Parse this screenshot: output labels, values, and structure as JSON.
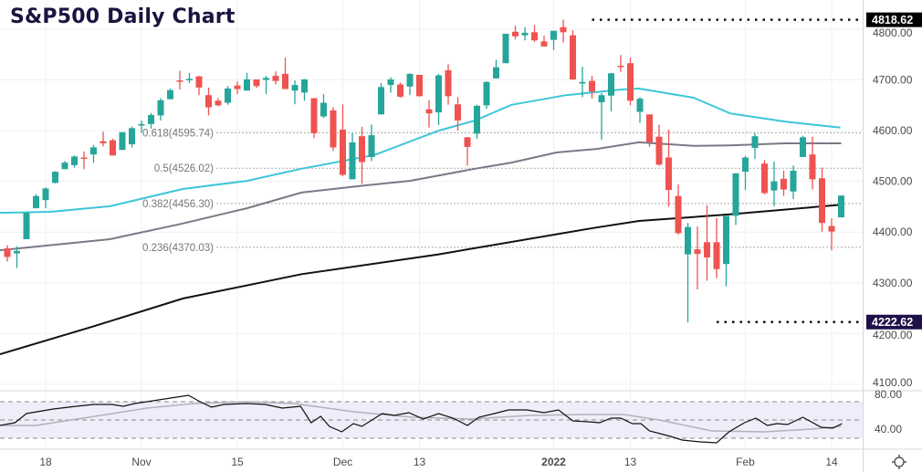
{
  "title": "S&P500 Daily Chart",
  "colors": {
    "up": "#26a69a",
    "down": "#ef5350",
    "ma50": "#3dc6d8",
    "ma100": "#787b86",
    "ma200": "#111111",
    "title": "#1d1340",
    "high_tag": "#000000",
    "low_tag": "#1e1048"
  },
  "chart_data": {
    "type": "candlestick",
    "title": "S&P500 Daily Chart",
    "first_index": -4,
    "ohlc": [
      [
        4368,
        4374,
        4342,
        4351
      ],
      [
        4358,
        4372,
        4329,
        4363
      ],
      [
        4386,
        4439,
        4386,
        4438
      ],
      [
        4447,
        4475,
        4447,
        4471
      ],
      [
        4463,
        4488,
        4447,
        4486
      ],
      [
        4497,
        4520,
        4496,
        4519
      ],
      [
        4524,
        4540,
        4524,
        4537
      ],
      [
        4532,
        4551,
        4527,
        4549
      ],
      [
        4547,
        4559,
        4524,
        4545
      ],
      [
        4553,
        4572,
        4537,
        4567
      ],
      [
        4579,
        4598,
        4569,
        4575
      ],
      [
        4581,
        4584,
        4551,
        4551
      ],
      [
        4562,
        4597,
        4562,
        4597
      ],
      [
        4573,
        4608,
        4567,
        4605
      ],
      [
        4610,
        4620,
        4595,
        4613
      ],
      [
        4613,
        4635,
        4604,
        4631
      ],
      [
        4630,
        4664,
        4620,
        4660
      ],
      [
        4662,
        4683,
        4662,
        4680
      ],
      [
        4699,
        4718,
        4681,
        4697
      ],
      [
        4702,
        4714,
        4694,
        4702
      ],
      [
        4707,
        4708,
        4670,
        4685
      ],
      [
        4670,
        4685,
        4630,
        4646
      ],
      [
        4659,
        4664,
        4648,
        4650
      ],
      [
        4655,
        4688,
        4651,
        4683
      ],
      [
        4689,
        4697,
        4672,
        4682
      ],
      [
        4679,
        4714,
        4679,
        4701
      ],
      [
        4701,
        4701,
        4684,
        4688
      ],
      [
        4700,
        4708,
        4672,
        4704
      ],
      [
        4708,
        4717,
        4691,
        4698
      ],
      [
        4712,
        4744,
        4682,
        4682
      ],
      [
        4679,
        4699,
        4652,
        4690
      ],
      [
        4675,
        4702,
        4659,
        4701
      ],
      [
        4664,
        4664,
        4585,
        4595
      ],
      [
        4628,
        4672,
        4625,
        4655
      ],
      [
        4640,
        4646,
        4560,
        4567
      ],
      [
        4602,
        4652,
        4510,
        4513
      ],
      [
        4504,
        4595,
        4504,
        4577
      ],
      [
        4589,
        4608,
        4495,
        4538
      ],
      [
        4548,
        4612,
        4540,
        4591
      ],
      [
        4632,
        4694,
        4632,
        4686
      ],
      [
        4690,
        4705,
        4675,
        4701
      ],
      [
        4691,
        4695,
        4665,
        4667
      ],
      [
        4687,
        4713,
        4670,
        4712
      ],
      [
        4710,
        4710,
        4667,
        4668
      ],
      [
        4642,
        4660,
        4606,
        4634
      ],
      [
        4636,
        4712,
        4611,
        4709
      ],
      [
        4719,
        4731,
        4651,
        4668
      ],
      [
        4652,
        4666,
        4600,
        4620
      ],
      [
        4587,
        4587,
        4531,
        4568
      ],
      [
        4594,
        4651,
        4584,
        4649
      ],
      [
        4650,
        4697,
        4643,
        4696
      ],
      [
        4703,
        4740,
        4703,
        4725
      ],
      [
        4733,
        4791,
        4733,
        4791
      ],
      [
        4795,
        4807,
        4780,
        4786
      ],
      [
        4788,
        4804,
        4778,
        4793
      ],
      [
        4794,
        4808,
        4775,
        4778
      ],
      [
        4776,
        4787,
        4766,
        4766
      ],
      [
        4779,
        4796,
        4759,
        4797
      ],
      [
        4804,
        4819,
        4774,
        4794
      ],
      [
        4788,
        4798,
        4700,
        4701
      ],
      [
        4693,
        4726,
        4666,
        4696
      ],
      [
        4698,
        4708,
        4663,
        4677
      ],
      [
        4656,
        4674,
        4582,
        4670
      ],
      [
        4669,
        4714,
        4638,
        4713
      ],
      [
        4728,
        4749,
        4716,
        4726
      ],
      [
        4733,
        4744,
        4650,
        4659
      ],
      [
        4637,
        4666,
        4615,
        4663
      ],
      [
        4632,
        4632,
        4568,
        4577
      ],
      [
        4588,
        4612,
        4531,
        4533
      ],
      [
        4547,
        4602,
        4450,
        4483
      ],
      [
        4471,
        4494,
        4395,
        4398
      ],
      [
        4356,
        4418,
        4222,
        4410
      ],
      [
        4366,
        4411,
        4287,
        4357
      ],
      [
        4380,
        4453,
        4304,
        4350
      ],
      [
        4380,
        4428,
        4309,
        4327
      ],
      [
        4337,
        4432,
        4293,
        4432
      ],
      [
        4432,
        4516,
        4414,
        4516
      ],
      [
        4519,
        4550,
        4483,
        4547
      ],
      [
        4566,
        4595,
        4544,
        4589
      ],
      [
        4535,
        4542,
        4474,
        4477
      ],
      [
        4482,
        4539,
        4451,
        4500
      ],
      [
        4505,
        4521,
        4471,
        4484
      ],
      [
        4480,
        4531,
        4465,
        4521
      ],
      [
        4548,
        4590,
        4548,
        4587
      ],
      [
        4553,
        4588,
        4484,
        4504
      ],
      [
        4506,
        4527,
        4401,
        4418
      ],
      [
        4412,
        4427,
        4364,
        4401
      ],
      [
        4429,
        4472,
        4429,
        4472
      ]
    ],
    "moving_averages": [
      {
        "name": "MA50",
        "color": "#3dc6d8",
        "points": [
          [
            -4.8,
            4438
          ],
          [
            0.5,
            4440
          ],
          [
            6.7,
            4451
          ],
          [
            14.3,
            4485
          ],
          [
            21,
            4501
          ],
          [
            26.7,
            4525
          ],
          [
            34.3,
            4552
          ],
          [
            41,
            4600
          ],
          [
            44.8,
            4620
          ],
          [
            48.6,
            4651
          ],
          [
            54.3,
            4670
          ],
          [
            60,
            4681
          ],
          [
            61.9,
            4683
          ],
          [
            67.6,
            4665
          ],
          [
            71.4,
            4634
          ],
          [
            77.1,
            4618
          ],
          [
            82.9,
            4606
          ]
        ]
      },
      {
        "name": "MA100",
        "color": "#787b86",
        "points": [
          [
            -4.8,
            4364
          ],
          [
            6.7,
            4386
          ],
          [
            14.3,
            4417
          ],
          [
            21,
            4447
          ],
          [
            26.7,
            4478
          ],
          [
            33.3,
            4492
          ],
          [
            38,
            4501
          ],
          [
            44.8,
            4525
          ],
          [
            48.6,
            4537
          ],
          [
            53.3,
            4557
          ],
          [
            57.5,
            4564
          ],
          [
            61.9,
            4577
          ],
          [
            67.6,
            4570
          ],
          [
            71.4,
            4571
          ],
          [
            77.1,
            4575
          ],
          [
            83,
            4575
          ]
        ]
      },
      {
        "name": "MA200",
        "color": "#111111",
        "points": [
          [
            -4.8,
            4159
          ],
          [
            4.8,
            4213
          ],
          [
            14.3,
            4269
          ],
          [
            26.7,
            4317
          ],
          [
            41,
            4356
          ],
          [
            57.1,
            4408
          ],
          [
            61.9,
            4422
          ],
          [
            71.4,
            4435
          ],
          [
            83,
            4454
          ]
        ]
      }
    ],
    "fib_levels": [
      {
        "label": "0.618(4595.74)",
        "price": 4595.74
      },
      {
        "label": "0.5(4526.02)",
        "price": 4526.02
      },
      {
        "label": "0.382(4456.30)",
        "price": 4456.3
      },
      {
        "label": "0.236(4370.03)",
        "price": 4370.03
      }
    ],
    "high_marker": {
      "label": "4818.62",
      "price": 4818.62,
      "start_index": 57
    },
    "low_marker": {
      "label": "4222.62",
      "price": 4222.62,
      "start_index": 70
    },
    "y_ticks": [
      "4800.00",
      "4700.00",
      "4600.00",
      "4500.00",
      "4400.00",
      "4300.00",
      "4200.00",
      "4100.00"
    ],
    "y_tick_values": [
      4800,
      4700,
      4600,
      4500,
      4400,
      4300,
      4200,
      4100
    ],
    "ylim": [
      4100,
      4840
    ],
    "x_ticks": [
      {
        "label": "18",
        "index": 0
      },
      {
        "label": "Nov",
        "index": 10
      },
      {
        "label": "15",
        "index": 20
      },
      {
        "label": "Dec",
        "index": 31
      },
      {
        "label": "13",
        "index": 39
      },
      {
        "label": "2022",
        "index": 53,
        "bold": true
      },
      {
        "label": "13",
        "index": 61
      },
      {
        "label": "Feb",
        "index": 73
      },
      {
        "label": "14",
        "index": 82
      }
    ],
    "rsi": {
      "y_ticks": [
        "80.00",
        "40.00"
      ],
      "y_tick_values": [
        80,
        40
      ],
      "bands": [
        70,
        50,
        30
      ],
      "line": [
        [
          -4.8,
          44
        ],
        [
          -3.2,
          47
        ],
        [
          -2,
          57
        ],
        [
          0.8,
          62
        ],
        [
          3.2,
          65
        ],
        [
          5,
          67
        ],
        [
          6.9,
          67
        ],
        [
          8.1,
          65
        ],
        [
          9.3,
          68
        ],
        [
          11.8,
          72
        ],
        [
          14.9,
          77
        ],
        [
          16.1,
          70
        ],
        [
          17.3,
          64
        ],
        [
          18.6,
          67
        ],
        [
          21,
          68
        ],
        [
          22.9,
          67
        ],
        [
          24.7,
          63
        ],
        [
          26.6,
          65
        ],
        [
          27.7,
          47
        ],
        [
          28.7,
          54
        ],
        [
          29.6,
          43
        ],
        [
          30.9,
          37
        ],
        [
          32.1,
          46
        ],
        [
          33,
          43
        ],
        [
          35.1,
          57
        ],
        [
          36.4,
          55
        ],
        [
          37.9,
          58
        ],
        [
          39.4,
          51
        ],
        [
          41,
          57
        ],
        [
          42.5,
          52
        ],
        [
          44,
          44
        ],
        [
          45.2,
          53
        ],
        [
          46.8,
          57
        ],
        [
          48.3,
          61
        ],
        [
          50.2,
          61
        ],
        [
          52,
          58
        ],
        [
          53.5,
          61
        ],
        [
          55,
          49
        ],
        [
          56.6,
          48
        ],
        [
          57.8,
          47
        ],
        [
          59,
          52
        ],
        [
          60,
          52
        ],
        [
          61.2,
          46
        ],
        [
          62.1,
          46
        ],
        [
          63,
          38
        ],
        [
          65.2,
          32
        ],
        [
          66.4,
          28
        ],
        [
          68.3,
          26
        ],
        [
          70,
          25
        ],
        [
          71.3,
          37
        ],
        [
          72.9,
          47
        ],
        [
          74.1,
          52
        ],
        [
          75.3,
          44
        ],
        [
          76.3,
          46
        ],
        [
          77.4,
          45
        ],
        [
          79,
          53
        ],
        [
          80.9,
          42
        ],
        [
          82.1,
          41
        ],
        [
          83.1,
          46
        ]
      ],
      "signal": [
        [
          -4.8,
          44
        ],
        [
          -1,
          44
        ],
        [
          4.5,
          53
        ],
        [
          10.6,
          63
        ],
        [
          15.5,
          68
        ],
        [
          21,
          70
        ],
        [
          25.9,
          68
        ],
        [
          32.1,
          59
        ],
        [
          38.2,
          53
        ],
        [
          44.3,
          51
        ],
        [
          50.5,
          55
        ],
        [
          56.6,
          56
        ],
        [
          60.3,
          56
        ],
        [
          64,
          50
        ],
        [
          69.5,
          38
        ],
        [
          75,
          37
        ],
        [
          79.9,
          40
        ],
        [
          83,
          43
        ]
      ]
    }
  }
}
